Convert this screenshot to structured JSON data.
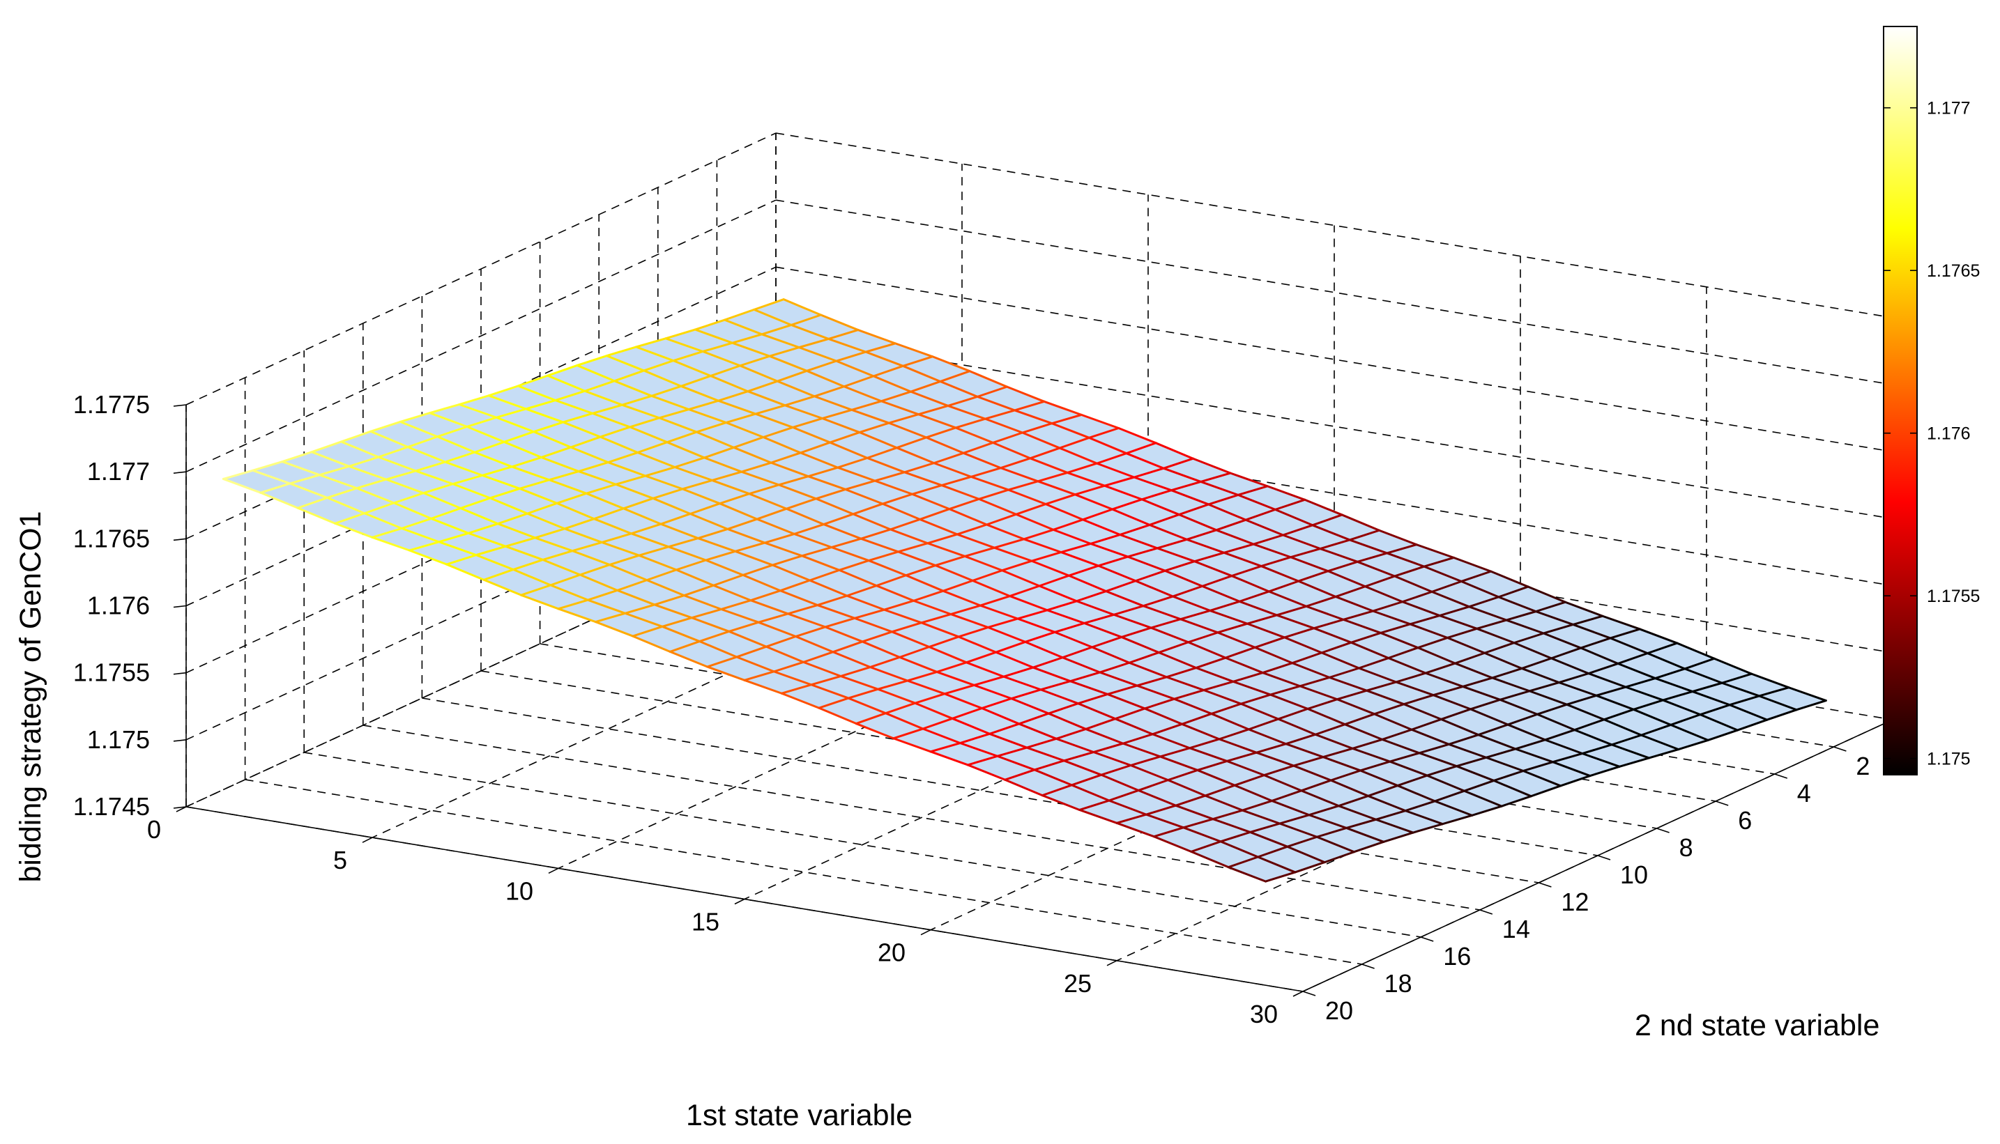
{
  "chart_data": {
    "type": "surface",
    "title": "",
    "xlabel": "1st state variable",
    "ylabel": "2 nd state variable",
    "zlabel": "bidding strategy of GenCO1",
    "x": {
      "min": 1,
      "max": 29,
      "count": 29
    },
    "y": {
      "min": 1,
      "max": 20,
      "count": 20
    },
    "xlim": [
      0,
      30
    ],
    "ylim": [
      0,
      20
    ],
    "zlim": [
      1.1745,
      1.1775
    ],
    "x_ticks": [
      0,
      5,
      10,
      15,
      20,
      25,
      30
    ],
    "y_ticks": [
      2,
      4,
      6,
      8,
      10,
      12,
      14,
      16,
      18,
      20
    ],
    "z_ticks": [
      "1.1745",
      "1.175",
      "1.1755",
      "1.176",
      "1.1765",
      "1.177",
      "1.1775"
    ],
    "z_formula": "z(x,y) ≈ 1.1764 + 0.000031*(y-1) - 0.000061*(x-1)",
    "corner_values": [
      {
        "x": 1,
        "y": 1,
        "z": 1.1764
      },
      {
        "x": 1,
        "y": 20,
        "z": 1.177
      },
      {
        "x": 29,
        "y": 1,
        "z": 1.1747
      },
      {
        "x": 29,
        "y": 20,
        "z": 1.1753
      }
    ],
    "grid": true,
    "colormap": "hot",
    "face_color": "#c6ddf5",
    "colorbar": {
      "ticks": [
        "1.175",
        "1.1755",
        "1.176",
        "1.1765",
        "1.177"
      ],
      "range": [
        1.17495,
        1.17725
      ],
      "placement": "right"
    }
  }
}
